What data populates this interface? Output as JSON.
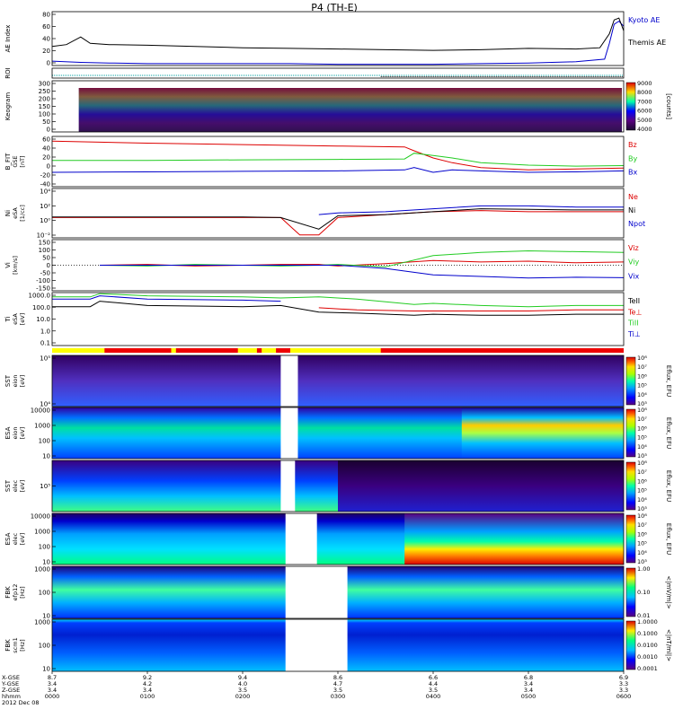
{
  "title": "P4 (TH-E)",
  "colors": {
    "red": "#dd0000",
    "green": "#22cc22",
    "blue": "#0000cc",
    "black": "#000000"
  },
  "chart_data": [
    {
      "type": "line",
      "panel": "ae",
      "ylabel": "AE Index",
      "yticks": [
        "0",
        "20",
        "40",
        "60",
        "80"
      ],
      "ylim": [
        0,
        85
      ],
      "legend": [
        "Kyoto AE",
        "Themis AE"
      ],
      "series": [
        {
          "name": "Kyoto AE",
          "color": "#0000cc",
          "x": [
            0,
            0.3,
            0.6,
            1,
            1.5,
            2,
            2.5,
            3,
            3.5,
            4,
            4.5,
            5,
            5.5,
            5.8,
            5.85,
            5.9,
            5.95,
            6
          ],
          "y": [
            7,
            5,
            4,
            3,
            3,
            3,
            3,
            2,
            2,
            2,
            3,
            4,
            6,
            10,
            35,
            65,
            70,
            62
          ]
        },
        {
          "name": "Themis AE",
          "color": "#000000",
          "x": [
            0,
            0.15,
            0.3,
            0.4,
            0.6,
            1,
            1.5,
            2,
            2.5,
            3,
            3.5,
            4,
            4.5,
            5,
            5.5,
            5.75,
            5.85,
            5.9,
            5.95,
            6
          ],
          "y": [
            30,
            33,
            45,
            35,
            33,
            32,
            30,
            28,
            27,
            26,
            25,
            24,
            25,
            27,
            26,
            28,
            50,
            72,
            75,
            55
          ]
        }
      ]
    },
    {
      "type": "bar",
      "panel": "roi",
      "ylabel": "ROI"
    },
    {
      "type": "heatmap",
      "panel": "keogram",
      "ylabel": "Keogram",
      "yticks": [
        "0",
        "50",
        "100",
        "150",
        "200",
        "250",
        "300"
      ],
      "colorbar": {
        "label": "[counts]",
        "ticks": [
          "4000",
          "5000",
          "6000",
          "7000",
          "8000",
          "9000"
        ]
      }
    },
    {
      "type": "line",
      "panel": "bfield",
      "ylabel": "B_FIT",
      "ysub": [
        "GSE",
        "[nT]"
      ],
      "yticks": [
        "-40",
        "-20",
        "0",
        "20",
        "40",
        "60"
      ],
      "ylim": [
        -45,
        60
      ],
      "legend": [
        "Bz",
        "By",
        "Bx"
      ],
      "series": [
        {
          "name": "Bz",
          "color": "#dd0000",
          "x": [
            0,
            1,
            2,
            3,
            3.7,
            3.8,
            4,
            4.2,
            4.5,
            5,
            5.5,
            6
          ],
          "y": [
            50,
            46,
            43,
            40,
            38,
            30,
            15,
            5,
            -5,
            -10,
            -8,
            -6
          ]
        },
        {
          "name": "By",
          "color": "#22cc22",
          "x": [
            0,
            1,
            2,
            3,
            3.7,
            3.8,
            4,
            4.2,
            4.5,
            5,
            5.5,
            6
          ],
          "y": [
            10,
            10,
            11,
            12,
            13,
            25,
            20,
            15,
            5,
            0,
            -2,
            -1
          ]
        },
        {
          "name": "Bx",
          "color": "#0000cc",
          "x": [
            0,
            1,
            2,
            3,
            3.7,
            3.8,
            4,
            4.2,
            4.5,
            5,
            5.5,
            6
          ],
          "y": [
            -15,
            -14,
            -13,
            -12,
            -10,
            -5,
            -15,
            -10,
            -12,
            -15,
            -14,
            -12
          ]
        }
      ]
    },
    {
      "type": "line",
      "panel": "density",
      "ylabel": "Ni",
      "ysub": [
        "eSA",
        "[1/cc]"
      ],
      "yticks": [
        "10⁻²",
        "10⁰",
        "10²",
        "10⁴"
      ],
      "legend": [
        "Ne",
        "Ni",
        "Npot"
      ],
      "series": [
        {
          "name": "Ne",
          "color": "#dd0000",
          "x": [
            0,
            1,
            2,
            2.4,
            2.6,
            2.8,
            3,
            3.5,
            4,
            4.5,
            5,
            5.5,
            6
          ],
          "y": [
            0,
            0,
            0,
            0,
            -3,
            -3,
            0,
            0.5,
            1,
            1.2,
            1,
            1,
            1
          ]
        },
        {
          "name": "Ni",
          "color": "#000000",
          "x": [
            0,
            1,
            2,
            2.4,
            2.8,
            3,
            3.5,
            4,
            4.5,
            5,
            5.5,
            6
          ],
          "y": [
            0.1,
            0.1,
            0.1,
            0,
            -2,
            0.3,
            0.5,
            1,
            1.5,
            1.4,
            1.3,
            1.3
          ]
        },
        {
          "name": "Npot",
          "color": "#0000cc",
          "x": [
            2.8,
            3,
            3.5,
            4,
            4.5,
            5,
            5.5,
            6
          ],
          "y": [
            0.5,
            0.8,
            1,
            1.5,
            2,
            2,
            1.8,
            1.8
          ]
        }
      ]
    },
    {
      "type": "line",
      "panel": "velocity",
      "ylabel": "Vi",
      "ysub": [
        "[km/s]"
      ],
      "yticks": [
        "-150",
        "-100",
        "-50",
        "0",
        "50",
        "100",
        "150"
      ],
      "ylim": [
        -160,
        160
      ],
      "legend": [
        "Viz",
        "Viy",
        "Vix"
      ],
      "series": [
        {
          "name": "Viz",
          "color": "#dd0000",
          "x": [
            0.5,
            1,
            1.5,
            2,
            2.4,
            2.8,
            3,
            3.5,
            4,
            4.5,
            5,
            5.5,
            6
          ],
          "y": [
            0,
            5,
            -5,
            0,
            5,
            5,
            -5,
            10,
            30,
            20,
            25,
            15,
            20
          ]
        },
        {
          "name": "Viy",
          "color": "#22cc22",
          "x": [
            0.5,
            1,
            1.5,
            2,
            2.4,
            2.8,
            3,
            3.5,
            4,
            4.5,
            5,
            5.5,
            6
          ],
          "y": [
            0,
            -5,
            5,
            0,
            -5,
            0,
            5,
            -10,
            60,
            80,
            90,
            85,
            80
          ]
        },
        {
          "name": "Vix",
          "color": "#0000cc",
          "x": [
            0.5,
            1,
            1.5,
            2,
            2.4,
            2.8,
            3,
            3.5,
            4,
            4.5,
            5,
            5.5,
            6
          ],
          "y": [
            0,
            0,
            0,
            0,
            0,
            0,
            0,
            -20,
            -60,
            -70,
            -80,
            -75,
            -78
          ]
        }
      ]
    },
    {
      "type": "line",
      "panel": "temperature",
      "ylabel": "Ti",
      "ysub": [
        "eSA",
        "[eV]"
      ],
      "yticks": [
        "0.1",
        "1.0",
        "10.0",
        "100.0",
        "1000.0"
      ],
      "legend": [
        "TeII",
        "Te⊥",
        "TiII",
        "Ti⊥"
      ],
      "series": [
        {
          "name": "TeII",
          "color": "#000000",
          "x": [
            0,
            0.4,
            0.5,
            1,
            2,
            2.4,
            2.8,
            3.2,
            3.8,
            4,
            4.5,
            5,
            5.5,
            6
          ],
          "y": [
            2.3,
            2.3,
            2.8,
            2.4,
            2.3,
            2.4,
            1.8,
            1.7,
            1.5,
            1.6,
            1.5,
            1.5,
            1.6,
            1.6
          ]
        },
        {
          "name": "Te⊥",
          "color": "#dd0000",
          "x": [
            2.8,
            3.2,
            3.8,
            4,
            4.5,
            5,
            5.5,
            6
          ],
          "y": [
            2.2,
            2.0,
            1.9,
            1.9,
            1.9,
            1.9,
            2.0,
            2.0
          ]
        },
        {
          "name": "TiII",
          "color": "#22cc22",
          "x": [
            0,
            0.4,
            0.5,
            1,
            2,
            2.4,
            2.8,
            3.2,
            3.8,
            4,
            4.5,
            5,
            5.5,
            6
          ],
          "y": [
            3.2,
            3.2,
            3.5,
            3.3,
            3.2,
            3.1,
            3.2,
            3.0,
            2.5,
            2.6,
            2.4,
            2.3,
            2.4,
            2.4
          ]
        },
        {
          "name": "Ti⊥",
          "color": "#0000cc",
          "x": [
            0,
            0.4,
            0.5,
            1,
            2,
            2.4
          ],
          "y": [
            3.0,
            3.0,
            3.3,
            3.0,
            2.9,
            2.8
          ]
        }
      ]
    },
    {
      "type": "heatmap",
      "panel": "sst-ion",
      "ylabel": "SST",
      "ysub": [
        "eion",
        "[eV]"
      ],
      "yticks": [
        "10⁴",
        "10⁵"
      ],
      "colorbar": {
        "label": "Eflux, EFU",
        "ticks": [
          "10³",
          "10⁴",
          "10⁵",
          "10⁶",
          "10⁷",
          "10⁸"
        ]
      }
    },
    {
      "type": "heatmap",
      "panel": "esa-ion",
      "ylabel": "ESA",
      "ysub": [
        "eion",
        "[eV]"
      ],
      "yticks": [
        "10",
        "100",
        "1000",
        "10000"
      ],
      "colorbar": {
        "label": "Eflux, EFU",
        "ticks": [
          "10³",
          "10⁴",
          "10⁵",
          "10⁶",
          "10⁷",
          "10⁸"
        ]
      }
    },
    {
      "type": "heatmap",
      "panel": "sst-elec",
      "ylabel": "SST",
      "ysub": [
        "elec",
        "[eV]"
      ],
      "yticks": [
        "10⁵"
      ],
      "colorbar": {
        "label": "Eflux, EFU",
        "ticks": [
          "10³",
          "10⁴",
          "10⁵",
          "10⁶",
          "10⁷",
          "10⁸"
        ]
      }
    },
    {
      "type": "heatmap",
      "panel": "esa-elec",
      "ylabel": "ESA",
      "ysub": [
        "elec",
        "[eV]"
      ],
      "yticks": [
        "10",
        "100",
        "1000",
        "10000"
      ],
      "colorbar": {
        "label": "Eflux, EFU",
        "ticks": [
          "10³",
          "10⁴",
          "10⁵",
          "10⁶",
          "10⁷",
          "10⁸"
        ]
      }
    },
    {
      "type": "heatmap",
      "panel": "fbk-e",
      "ylabel": "FBK",
      "ysub": [
        "efp12",
        "[Hz]"
      ],
      "yticks": [
        "10",
        "100",
        "1000"
      ],
      "colorbar": {
        "label": "<|mV/m|>",
        "ticks": [
          "0.01",
          "0.10",
          "1.00"
        ]
      }
    },
    {
      "type": "heatmap",
      "panel": "fbk-b",
      "ylabel": "FBK",
      "ysub": [
        "scm1",
        "[Hz]"
      ],
      "yticks": [
        "10",
        "100",
        "1000"
      ],
      "colorbar": {
        "label": "<|nT/ml|>",
        "ticks": [
          "0.0001",
          "0.0010",
          "0.0100",
          "0.1000",
          "1.0000"
        ]
      }
    }
  ],
  "time_axis": {
    "row_labels": [
      "X-GSE",
      "Y-GSE",
      "Z-GSE",
      "hhmm",
      "2012 Dec 08"
    ],
    "ticks": [
      {
        "x": "8.7",
        "y": "3.4",
        "z": "3.4",
        "t": "0000"
      },
      {
        "x": "9.2",
        "y": "4.2",
        "z": "3.4",
        "t": "0100"
      },
      {
        "x": "9.4",
        "y": "4.0",
        "z": "3.5",
        "t": "0200"
      },
      {
        "x": "8.6",
        "y": "4.7",
        "z": "3.5",
        "t": "0300"
      },
      {
        "x": "6.6",
        "y": "4.4",
        "z": "3.5",
        "t": "0400"
      },
      {
        "x": "6.8",
        "y": "3.4",
        "z": "3.4",
        "t": "0500"
      },
      {
        "x": "6.9",
        "y": "3.3",
        "z": "3.3",
        "t": "0600"
      }
    ]
  }
}
